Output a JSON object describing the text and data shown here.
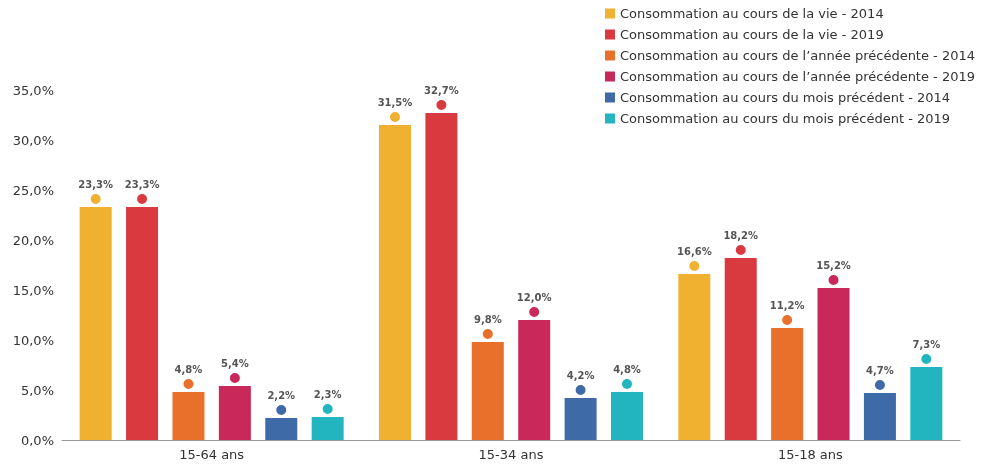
{
  "chart_data": {
    "type": "bar",
    "categories": [
      "15-64 ans",
      "15-34 ans",
      "15-18 ans"
    ],
    "series": [
      {
        "name": "Consommation au cours de la vie - 2014",
        "color": "#f0b030",
        "values": [
          23.3,
          31.5,
          16.6
        ],
        "value_labels": [
          "23,3%",
          "31,5%",
          "16,6%"
        ]
      },
      {
        "name": "Consommation au cours de la vie - 2019",
        "color": "#d83a40",
        "values": [
          23.3,
          32.7,
          18.2
        ],
        "value_labels": [
          "23,3%",
          "32,7%",
          "18,2%"
        ]
      },
      {
        "name": "Consommation au cours de l’année précédente - 2014",
        "color": "#e8702a",
        "values": [
          4.8,
          9.8,
          11.2
        ],
        "value_labels": [
          "4,8%",
          "9,8%",
          "11,2%"
        ]
      },
      {
        "name": "Consommation au cours de l’année précédente - 2019",
        "color": "#c8285a",
        "values": [
          5.4,
          12.0,
          15.2
        ],
        "value_labels": [
          "5,4%",
          "12,0%",
          "15,2%"
        ]
      },
      {
        "name": "Consommation au cours du mois précédent - 2014",
        "color": "#3f6aa8",
        "values": [
          2.2,
          4.2,
          4.7
        ],
        "value_labels": [
          "2,2%",
          "4,2%",
          "4,7%"
        ]
      },
      {
        "name": "Consommation au cours du mois précédent - 2019",
        "color": "#22b5c0",
        "values": [
          2.3,
          4.8,
          7.3
        ],
        "value_labels": [
          "2,3%",
          "4,8%",
          "7,3%"
        ]
      }
    ],
    "ylim": [
      0,
      35
    ],
    "yticks": [
      {
        "value": 0,
        "label": "0,0%"
      },
      {
        "value": 5,
        "label": "5,0%"
      },
      {
        "value": 10,
        "label": "10,0%"
      },
      {
        "value": 15,
        "label": "15,0%"
      },
      {
        "value": 20,
        "label": "20,0%"
      },
      {
        "value": 25,
        "label": "25,0%"
      },
      {
        "value": 30,
        "label": "30,0%"
      },
      {
        "value": 35,
        "label": "35,0%"
      }
    ],
    "grid": false,
    "legend": "top right",
    "marker": "circle"
  }
}
